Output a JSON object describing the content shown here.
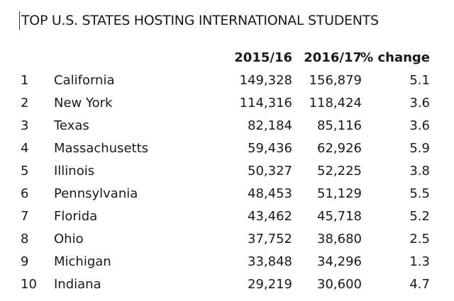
{
  "title": "TOP U.S. STATES HOSTING INTERNATIONAL STUDENTS",
  "table": {
    "header": [
      "2015/16",
      "2016/17",
      "% change"
    ],
    "rows": [
      [
        "1",
        "California",
        "149,328",
        "156,879",
        "5.1"
      ],
      [
        "2",
        "New York",
        "114,316",
        "118,424",
        "3.6"
      ],
      [
        "3",
        "Texas",
        "82,184",
        "85,116",
        "3.6"
      ],
      [
        "4",
        "Massachusetts",
        "59,436",
        "62,926",
        "5.9"
      ],
      [
        "5",
        "Illinois",
        "50,327",
        "52,225",
        "3.8"
      ],
      [
        "6",
        "Pennsylvania",
        "48,453",
        "51,129",
        "5.5"
      ],
      [
        "7",
        "Florida",
        "43,462",
        "45,718",
        "5.2"
      ],
      [
        "8",
        "Ohio",
        "37,752",
        "38,680",
        "2.5"
      ],
      [
        "9",
        "Michigan",
        "33,848",
        "34,296",
        "1.3"
      ],
      [
        "10",
        "Indiana",
        "29,219",
        "30,600",
        "4.7"
      ]
    ]
  }
}
